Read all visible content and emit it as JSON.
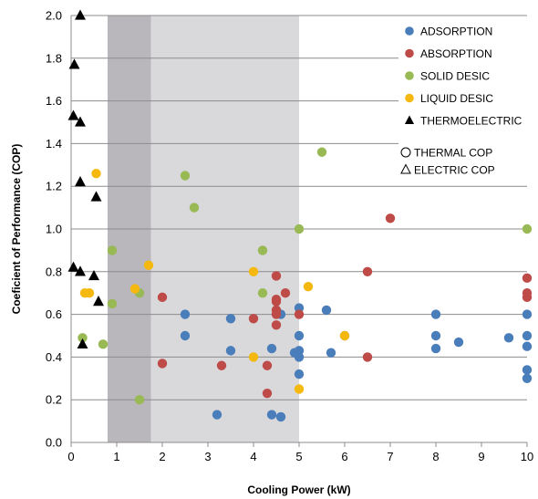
{
  "chart_data": {
    "type": "scatter",
    "title": "",
    "xlabel": "Cooling Power (kW)",
    "ylabel": "Coeficient of Performance (COP)",
    "xlim": [
      0,
      10
    ],
    "ylim": [
      0,
      2.0
    ],
    "x_ticks": [
      "0",
      "1",
      "2",
      "3",
      "4",
      "5",
      "6",
      "7",
      "8",
      "9",
      "10"
    ],
    "y_ticks": [
      "0.0",
      "0.2",
      "0.4",
      "0.6",
      "0.8",
      "1.0",
      "1.2",
      "1.4",
      "1.6",
      "1.8",
      "2.0"
    ],
    "grid": "horizontal",
    "legend_position": "top-right",
    "shaded_regions": [
      {
        "x0": 0.8,
        "x1": 1.75,
        "color": "#b9b7bc"
      },
      {
        "x0": 1.75,
        "x1": 5.0,
        "color": "#d9d8db"
      }
    ],
    "series": [
      {
        "name": "ADSORPTION",
        "color": "#4a7ebb",
        "marker": "circle",
        "points": [
          [
            2.5,
            0.6
          ],
          [
            2.5,
            0.5
          ],
          [
            3.2,
            0.13
          ],
          [
            3.5,
            0.58
          ],
          [
            3.5,
            0.43
          ],
          [
            4.4,
            0.44
          ],
          [
            4.4,
            0.13
          ],
          [
            4.6,
            0.12
          ],
          [
            4.6,
            0.6
          ],
          [
            4.9,
            0.42
          ],
          [
            5.0,
            0.63
          ],
          [
            5.0,
            0.5
          ],
          [
            5.0,
            0.43
          ],
          [
            5.0,
            0.4
          ],
          [
            5.0,
            0.32
          ],
          [
            5.6,
            0.62
          ],
          [
            5.7,
            0.42
          ],
          [
            6.0,
            0.5
          ],
          [
            8.0,
            0.6
          ],
          [
            8.0,
            0.5
          ],
          [
            8.0,
            0.44
          ],
          [
            8.5,
            0.47
          ],
          [
            9.6,
            0.49
          ],
          [
            10,
            0.6
          ],
          [
            10,
            0.5
          ],
          [
            10,
            0.45
          ],
          [
            10,
            0.34
          ],
          [
            10,
            0.3
          ]
        ]
      },
      {
        "name": "ABSORPTION",
        "color": "#be4b48",
        "marker": "circle",
        "points": [
          [
            2.0,
            0.68
          ],
          [
            2.0,
            0.37
          ],
          [
            3.3,
            0.36
          ],
          [
            4.0,
            0.58
          ],
          [
            4.3,
            0.23
          ],
          [
            4.3,
            0.36
          ],
          [
            4.5,
            0.78
          ],
          [
            4.5,
            0.67
          ],
          [
            4.5,
            0.66
          ],
          [
            4.5,
            0.62
          ],
          [
            4.5,
            0.6
          ],
          [
            4.5,
            0.55
          ],
          [
            4.7,
            0.7
          ],
          [
            5.0,
            0.6
          ],
          [
            6.5,
            0.8
          ],
          [
            6.5,
            0.4
          ],
          [
            7.0,
            1.05
          ],
          [
            10,
            0.77
          ],
          [
            10,
            0.7
          ],
          [
            10,
            0.68
          ]
        ]
      },
      {
        "name": "SOLID DESIC",
        "color": "#98b954",
        "marker": "circle",
        "points": [
          [
            0.25,
            0.49
          ],
          [
            0.7,
            0.46
          ],
          [
            0.9,
            0.9
          ],
          [
            0.9,
            0.65
          ],
          [
            1.5,
            0.7
          ],
          [
            1.5,
            0.2
          ],
          [
            2.5,
            1.25
          ],
          [
            2.7,
            1.1
          ],
          [
            4.2,
            0.9
          ],
          [
            4.2,
            0.7
          ],
          [
            5.0,
            1.0
          ],
          [
            5.5,
            1.36
          ],
          [
            10,
            1.0
          ]
        ]
      },
      {
        "name": "LIQUID DESIC",
        "color": "#f5b80f",
        "marker": "circle",
        "points": [
          [
            0.3,
            0.7
          ],
          [
            0.4,
            0.7
          ],
          [
            0.55,
            1.26
          ],
          [
            1.4,
            0.72
          ],
          [
            1.7,
            0.83
          ],
          [
            4.0,
            0.8
          ],
          [
            4.0,
            0.4
          ],
          [
            5.0,
            0.25
          ],
          [
            5.2,
            0.73
          ],
          [
            6.0,
            0.5
          ]
        ]
      },
      {
        "name": "THERMOELECTRIC",
        "color": "#000000",
        "marker": "triangle",
        "points": [
          [
            0.2,
            2.0
          ],
          [
            0.07,
            1.77
          ],
          [
            0.05,
            1.53
          ],
          [
            0.2,
            1.5
          ],
          [
            0.2,
            1.22
          ],
          [
            0.55,
            1.15
          ],
          [
            0.05,
            0.82
          ],
          [
            0.2,
            0.8
          ],
          [
            0.5,
            0.78
          ],
          [
            0.6,
            0.66
          ],
          [
            0.25,
            0.46
          ]
        ]
      }
    ],
    "marker_legend": [
      {
        "label": "THERMAL COP",
        "marker": "circle-outline"
      },
      {
        "label": "ELECTRIC COP",
        "marker": "triangle-outline"
      }
    ]
  }
}
